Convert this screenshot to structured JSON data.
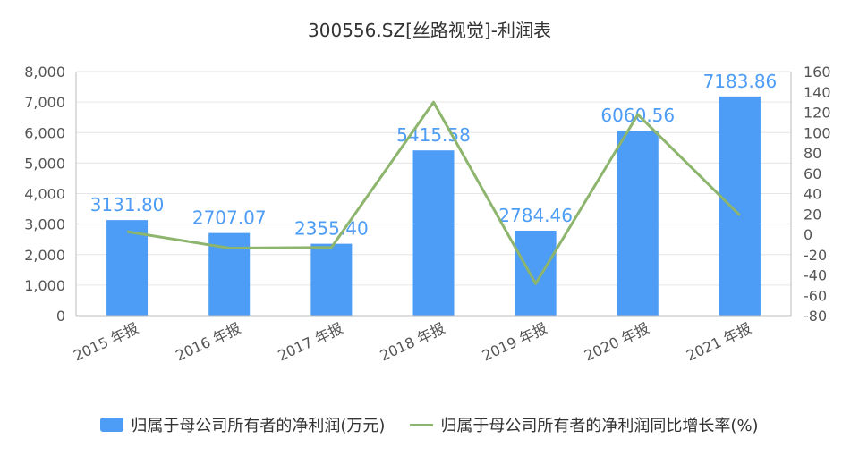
{
  "chart_data": {
    "type": "bar+line",
    "title": "300556.SZ[丝路视觉]-利润表",
    "categories": [
      "2015 年报",
      "2016 年报",
      "2017 年报",
      "2018 年报",
      "2019 年报",
      "2020 年报",
      "2021 年报"
    ],
    "series": [
      {
        "name": "归属于母公司所有者的净利润(万元)",
        "type": "bar",
        "axis": "left",
        "color": "#4d9cf5",
        "values": [
          3131.8,
          2707.07,
          2355.4,
          5415.58,
          2784.46,
          6060.56,
          7183.86
        ],
        "labels": [
          "3131.80",
          "2707.07",
          "2355.40",
          "5415.58",
          "2784.46",
          "6060.56",
          "7183.86"
        ]
      },
      {
        "name": "归属于母公司所有者的净利润同比增长率(%)",
        "type": "line",
        "axis": "right",
        "color": "#8db56d",
        "values": [
          2.5,
          -13.6,
          -13.0,
          129.9,
          -48.6,
          117.7,
          18.5
        ]
      }
    ],
    "y_left": {
      "min": 0,
      "max": 8000,
      "ticks": [
        "0",
        "1,000",
        "2,000",
        "3,000",
        "4,000",
        "5,000",
        "6,000",
        "7,000",
        "8,000"
      ]
    },
    "y_right": {
      "min": -80,
      "max": 160,
      "ticks": [
        "-80",
        "-60",
        "-40",
        "-20",
        "0",
        "20",
        "40",
        "60",
        "80",
        "100",
        "120",
        "140",
        "160"
      ]
    },
    "grid": true,
    "legend_position": "bottom"
  }
}
